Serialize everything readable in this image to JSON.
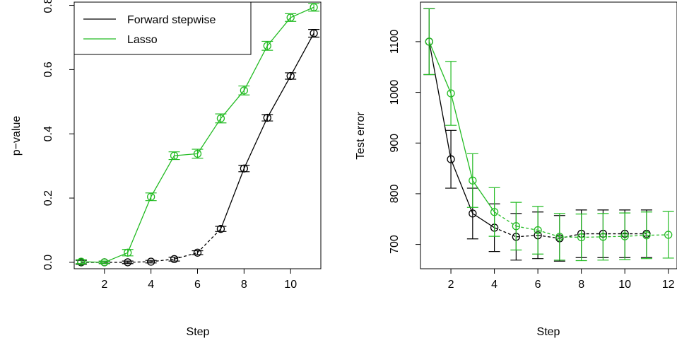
{
  "colors": {
    "forward": "#000000",
    "lasso": "#22bb22",
    "axis": "#000000",
    "background": "#ffffff"
  },
  "chart_data": [
    {
      "type": "line",
      "xlabel": "Step",
      "ylabel": "p−value",
      "xlim": [
        0.7,
        11.3
      ],
      "ylim": [
        -0.02,
        0.81
      ],
      "xticks": [
        2,
        4,
        6,
        8,
        10
      ],
      "yticks": [
        0.0,
        0.2,
        0.4,
        0.6,
        0.8
      ],
      "xtick_labels": [
        "2",
        "4",
        "6",
        "8",
        "10"
      ],
      "ytick_labels": [
        "0.0",
        "0.2",
        "0.4",
        "0.6",
        "0.8"
      ],
      "legend": {
        "placement": "top-left",
        "entries": [
          "Forward stepwise",
          "Lasso"
        ]
      },
      "grid": false,
      "series": [
        {
          "name": "Forward stepwise",
          "color": "#000000",
          "x": [
            1,
            2,
            3,
            4,
            5,
            6,
            7,
            8,
            9,
            10,
            11
          ],
          "y": [
            0.0,
            0.0,
            0.0,
            0.002,
            0.01,
            0.03,
            0.104,
            0.292,
            0.45,
            0.58,
            0.713
          ],
          "err": [
            0.006,
            0.004,
            0.004,
            0.004,
            0.006,
            0.006,
            0.008,
            0.01,
            0.01,
            0.01,
            0.012
          ],
          "segment_styles": [
            "dashed",
            "dashed",
            "dashed",
            "dashed",
            "dashed",
            "dashed",
            "solid",
            "solid",
            "solid",
            "solid"
          ]
        },
        {
          "name": "Lasso",
          "color": "#22bb22",
          "x": [
            1,
            2,
            3,
            4,
            5,
            6,
            7,
            8,
            9,
            10,
            11
          ],
          "y": [
            0.002,
            0.0,
            0.03,
            0.204,
            0.332,
            0.338,
            0.448,
            0.535,
            0.674,
            0.762,
            0.794
          ],
          "err": [
            0.006,
            0.004,
            0.01,
            0.012,
            0.012,
            0.014,
            0.014,
            0.014,
            0.014,
            0.012,
            0.012
          ],
          "segment_styles": [
            "solid",
            "solid",
            "solid",
            "solid",
            "solid",
            "solid",
            "solid",
            "solid",
            "solid",
            "solid"
          ]
        }
      ]
    },
    {
      "type": "line",
      "xlabel": "Step",
      "ylabel": "Test error",
      "xlim": [
        0.6,
        12.4
      ],
      "ylim": [
        652,
        1178
      ],
      "xticks": [
        2,
        4,
        6,
        8,
        10,
        12
      ],
      "yticks": [
        700,
        800,
        900,
        1000,
        1100
      ],
      "xtick_labels": [
        "2",
        "4",
        "6",
        "8",
        "10",
        "12"
      ],
      "ytick_labels": [
        "700",
        "800",
        "900",
        "1000",
        "1100"
      ],
      "grid": false,
      "series": [
        {
          "name": "Forward stepwise",
          "color": "#000000",
          "x": [
            1,
            2,
            3,
            4,
            5,
            6,
            7,
            8,
            9,
            10,
            11
          ],
          "y": [
            1100,
            868,
            761,
            733,
            715,
            718,
            712,
            721,
            721,
            721,
            721
          ],
          "err": [
            65,
            57,
            50,
            47,
            46,
            46,
            45,
            47,
            47,
            47,
            47
          ],
          "segment_styles": [
            "solid",
            "solid",
            "solid",
            "dashed",
            "dashed",
            "dashed",
            "dashed",
            "dashed",
            "dashed",
            "dashed"
          ]
        },
        {
          "name": "Lasso",
          "color": "#22bb22",
          "x": [
            1,
            2,
            3,
            4,
            5,
            6,
            7,
            8,
            9,
            10,
            11,
            12
          ],
          "y": [
            1100,
            998,
            826,
            764,
            736,
            728,
            715,
            714,
            715,
            716,
            718,
            719
          ],
          "err": [
            65,
            63,
            53,
            48,
            47,
            47,
            46,
            46,
            46,
            46,
            46,
            46
          ],
          "segment_styles": [
            "solid",
            "solid",
            "solid",
            "dashed",
            "dashed",
            "dashed",
            "dashed",
            "dashed",
            "dashed",
            "dashed",
            "dashed"
          ]
        }
      ]
    }
  ]
}
